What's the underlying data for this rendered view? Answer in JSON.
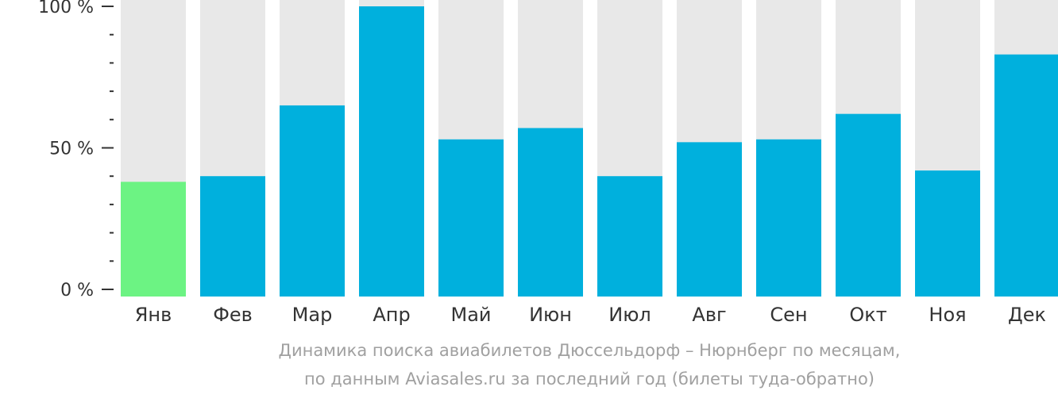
{
  "chart_data": {
    "type": "bar",
    "categories": [
      "Янв",
      "Фев",
      "Мар",
      "Апр",
      "Май",
      "Июн",
      "Июл",
      "Авг",
      "Сен",
      "Окт",
      "Ноя",
      "Дек"
    ],
    "values": [
      38,
      40,
      65,
      100,
      53,
      57,
      40,
      52,
      53,
      62,
      42,
      83
    ],
    "highlighted_index": 0,
    "ylim": [
      0,
      100
    ],
    "y_ticks": [
      {
        "value": 0,
        "label": "0 %"
      },
      {
        "value": 50,
        "label": "50 %"
      },
      {
        "value": 100,
        "label": "100 %"
      }
    ],
    "y_minor_step": 10,
    "title": "",
    "xlabel": "",
    "ylabel": "",
    "grid": false,
    "colors": {
      "bar": "#00b0dd",
      "highlight": "#6cf383",
      "track": "#e8e8e8",
      "axis": "#333333",
      "caption": "#a0a0a0"
    }
  },
  "caption": {
    "line1": "Динамика поиска авиабилетов Дюссельдорф – Нюрнберг по месяцам,",
    "line2": "по данным Aviasales.ru за последний год (билеты туда-обратно)"
  }
}
